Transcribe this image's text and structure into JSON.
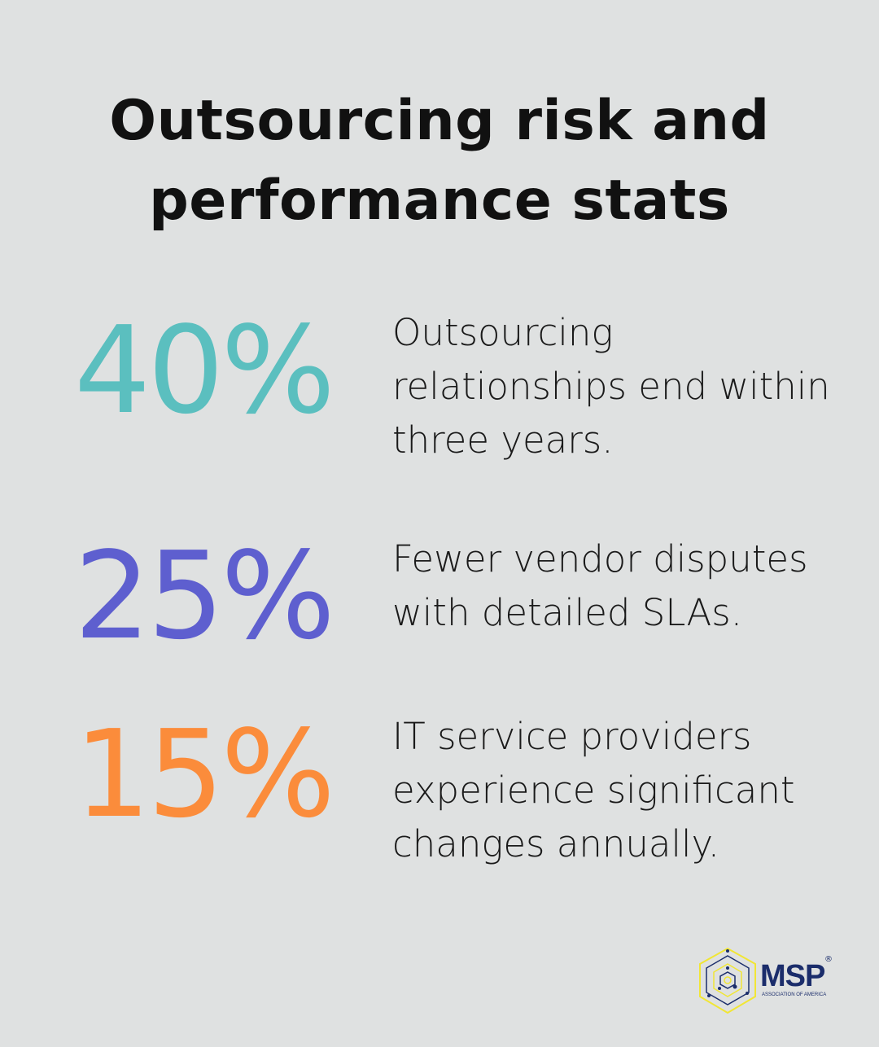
{
  "title": "Outsourcing risk and performance stats",
  "colors": {
    "teal": "#5bbfbf",
    "purple": "#5e5fcf",
    "orange": "#fb8c3b",
    "logo_navy": "#1b2d6b",
    "logo_yellow": "#f1e635"
  },
  "stats": [
    {
      "value": "40%",
      "text": "Outsourcing relationships end within three years."
    },
    {
      "value": "25%",
      "text": "Fewer vendor disputes with detailed SLAs."
    },
    {
      "value": "15%",
      "text": "IT service providers experience significant changes annually."
    }
  ],
  "logo": {
    "name": "MSP",
    "subtitle": "ASSOCIATION OF AMERICA",
    "mark": "®"
  }
}
